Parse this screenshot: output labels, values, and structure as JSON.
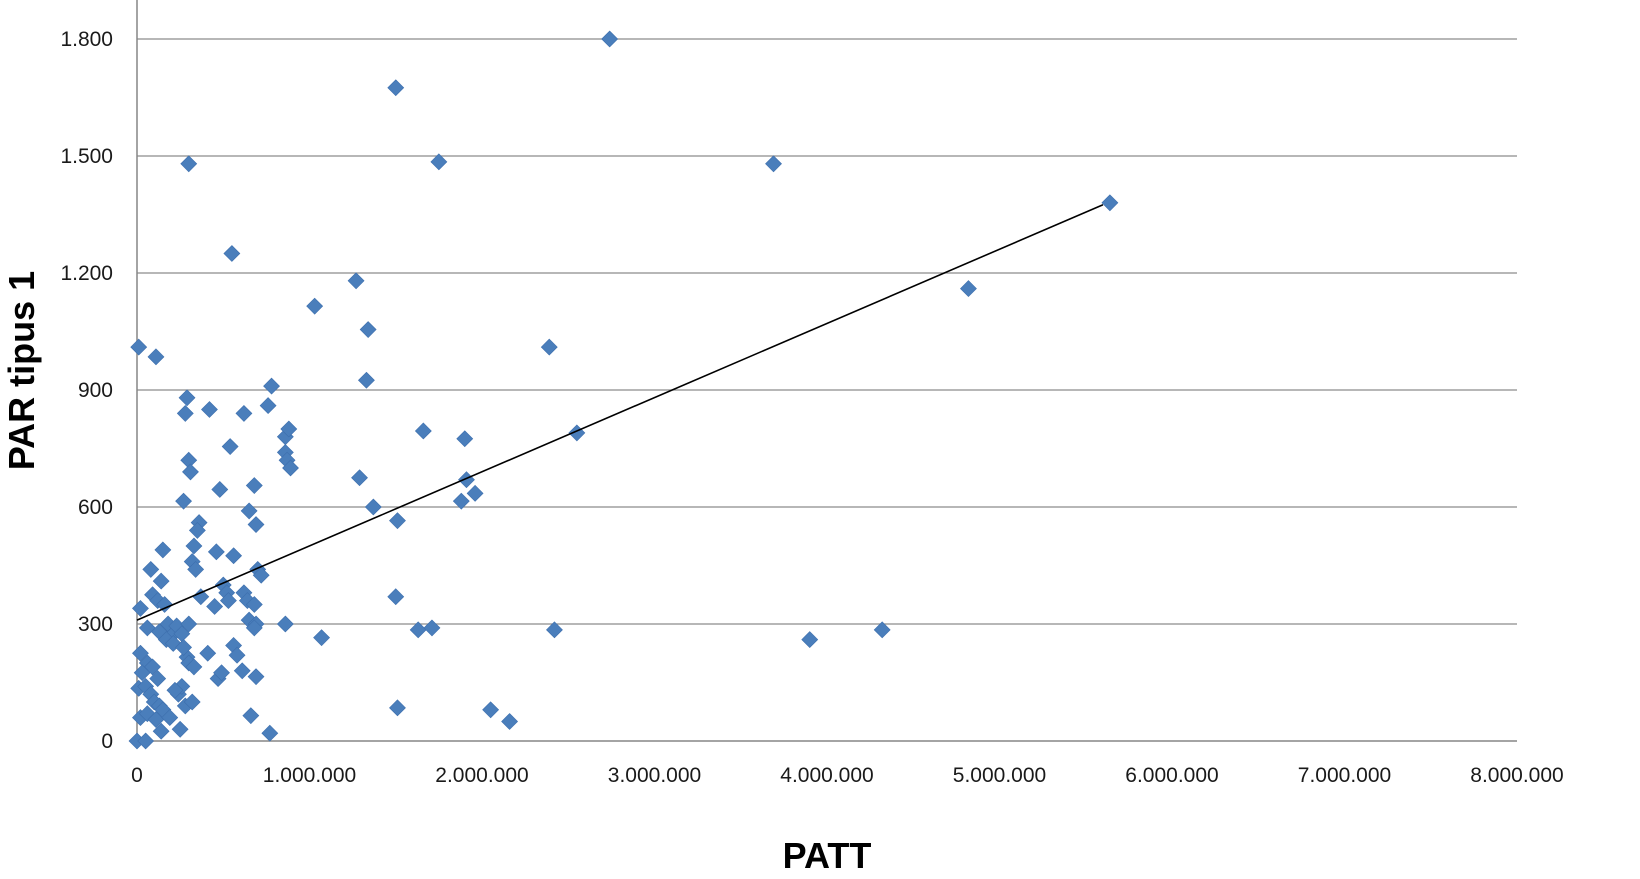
{
  "chart_data": {
    "type": "scatter",
    "title": "",
    "xlabel": "PATT",
    "ylabel": "PAR tipus 1",
    "xlim": [
      0,
      8000000
    ],
    "ylim": [
      0,
      1900
    ],
    "x_ticks": [
      0,
      1000000,
      2000000,
      3000000,
      4000000,
      5000000,
      6000000,
      7000000,
      8000000
    ],
    "x_tick_labels": [
      "0",
      "1.000.000",
      "2.000.000",
      "3.000.000",
      "4.000.000",
      "5.000.000",
      "6.000.000",
      "7.000.000",
      "8.000.000"
    ],
    "y_ticks": [
      0,
      300,
      600,
      900,
      1200,
      1500,
      1800
    ],
    "y_tick_labels": [
      "0",
      "300",
      "600",
      "900",
      "1.200",
      "1.500",
      "1.800"
    ],
    "grid": "horizontal",
    "legend": "none",
    "marker": "diamond",
    "marker_color": "#4a7ebb",
    "trendline": {
      "x": [
        0,
        5600000
      ],
      "y": [
        310,
        1375
      ]
    },
    "series": [
      {
        "points": [
          [
            10000,
            1010
          ],
          [
            110000,
            985
          ],
          [
            20000,
            340
          ],
          [
            60000,
            290
          ],
          [
            90000,
            375
          ],
          [
            150000,
            490
          ],
          [
            80000,
            440
          ],
          [
            140000,
            410
          ],
          [
            120000,
            360
          ],
          [
            160000,
            350
          ],
          [
            180000,
            300
          ],
          [
            130000,
            280
          ],
          [
            200000,
            270
          ],
          [
            230000,
            295
          ],
          [
            170000,
            260
          ],
          [
            210000,
            250
          ],
          [
            260000,
            275
          ],
          [
            20000,
            225
          ],
          [
            60000,
            200
          ],
          [
            90000,
            190
          ],
          [
            120000,
            160
          ],
          [
            30000,
            175
          ],
          [
            10000,
            135
          ],
          [
            50000,
            140
          ],
          [
            80000,
            120
          ],
          [
            100000,
            100
          ],
          [
            130000,
            90
          ],
          [
            150000,
            80
          ],
          [
            20000,
            60
          ],
          [
            60000,
            70
          ],
          [
            110000,
            55
          ],
          [
            140000,
            25
          ],
          [
            190000,
            60
          ],
          [
            0,
            0
          ],
          [
            50000,
            0
          ],
          [
            240000,
            120
          ],
          [
            260000,
            140
          ],
          [
            220000,
            130
          ],
          [
            280000,
            90
          ],
          [
            320000,
            100
          ],
          [
            250000,
            30
          ],
          [
            290000,
            215
          ],
          [
            300000,
            200
          ],
          [
            330000,
            190
          ],
          [
            270000,
            240
          ],
          [
            300000,
            300
          ],
          [
            300000,
            1480
          ],
          [
            290000,
            880
          ],
          [
            280000,
            840
          ],
          [
            300000,
            720
          ],
          [
            310000,
            690
          ],
          [
            270000,
            615
          ],
          [
            360000,
            560
          ],
          [
            350000,
            540
          ],
          [
            330000,
            500
          ],
          [
            320000,
            460
          ],
          [
            340000,
            440
          ],
          [
            370000,
            370
          ],
          [
            420000,
            850
          ],
          [
            460000,
            485
          ],
          [
            500000,
            400
          ],
          [
            520000,
            380
          ],
          [
            450000,
            345
          ],
          [
            410000,
            225
          ],
          [
            470000,
            160
          ],
          [
            490000,
            175
          ],
          [
            550000,
            1250
          ],
          [
            620000,
            840
          ],
          [
            540000,
            755
          ],
          [
            480000,
            645
          ],
          [
            560000,
            475
          ],
          [
            530000,
            360
          ],
          [
            560000,
            245
          ],
          [
            580000,
            220
          ],
          [
            610000,
            180
          ],
          [
            690000,
            165
          ],
          [
            660000,
            65
          ],
          [
            780000,
            910
          ],
          [
            760000,
            860
          ],
          [
            650000,
            590
          ],
          [
            680000,
            655
          ],
          [
            690000,
            555
          ],
          [
            700000,
            440
          ],
          [
            720000,
            425
          ],
          [
            620000,
            380
          ],
          [
            640000,
            360
          ],
          [
            680000,
            350
          ],
          [
            650000,
            310
          ],
          [
            690000,
            300
          ],
          [
            680000,
            290
          ],
          [
            770000,
            20
          ],
          [
            860000,
            780
          ],
          [
            880000,
            800
          ],
          [
            860000,
            740
          ],
          [
            870000,
            720
          ],
          [
            890000,
            700
          ],
          [
            860000,
            300
          ],
          [
            1030000,
            1115
          ],
          [
            1070000,
            265
          ],
          [
            1270000,
            1180
          ],
          [
            1340000,
            1055
          ],
          [
            1330000,
            925
          ],
          [
            1290000,
            675
          ],
          [
            1370000,
            600
          ],
          [
            1500000,
            1675
          ],
          [
            1510000,
            565
          ],
          [
            1500000,
            370
          ],
          [
            1510000,
            85
          ],
          [
            1750000,
            1485
          ],
          [
            1660000,
            795
          ],
          [
            1630000,
            285
          ],
          [
            1710000,
            290
          ],
          [
            1900000,
            775
          ],
          [
            1910000,
            670
          ],
          [
            1880000,
            615
          ],
          [
            1960000,
            635
          ],
          [
            2050000,
            80
          ],
          [
            2160000,
            50
          ],
          [
            2390000,
            1010
          ],
          [
            2420000,
            285
          ],
          [
            2550000,
            790
          ],
          [
            2740000,
            1800
          ],
          [
            3690000,
            1480
          ],
          [
            3900000,
            260
          ],
          [
            4320000,
            285
          ],
          [
            4820000,
            1160
          ],
          [
            5640000,
            1380
          ]
        ]
      }
    ]
  }
}
